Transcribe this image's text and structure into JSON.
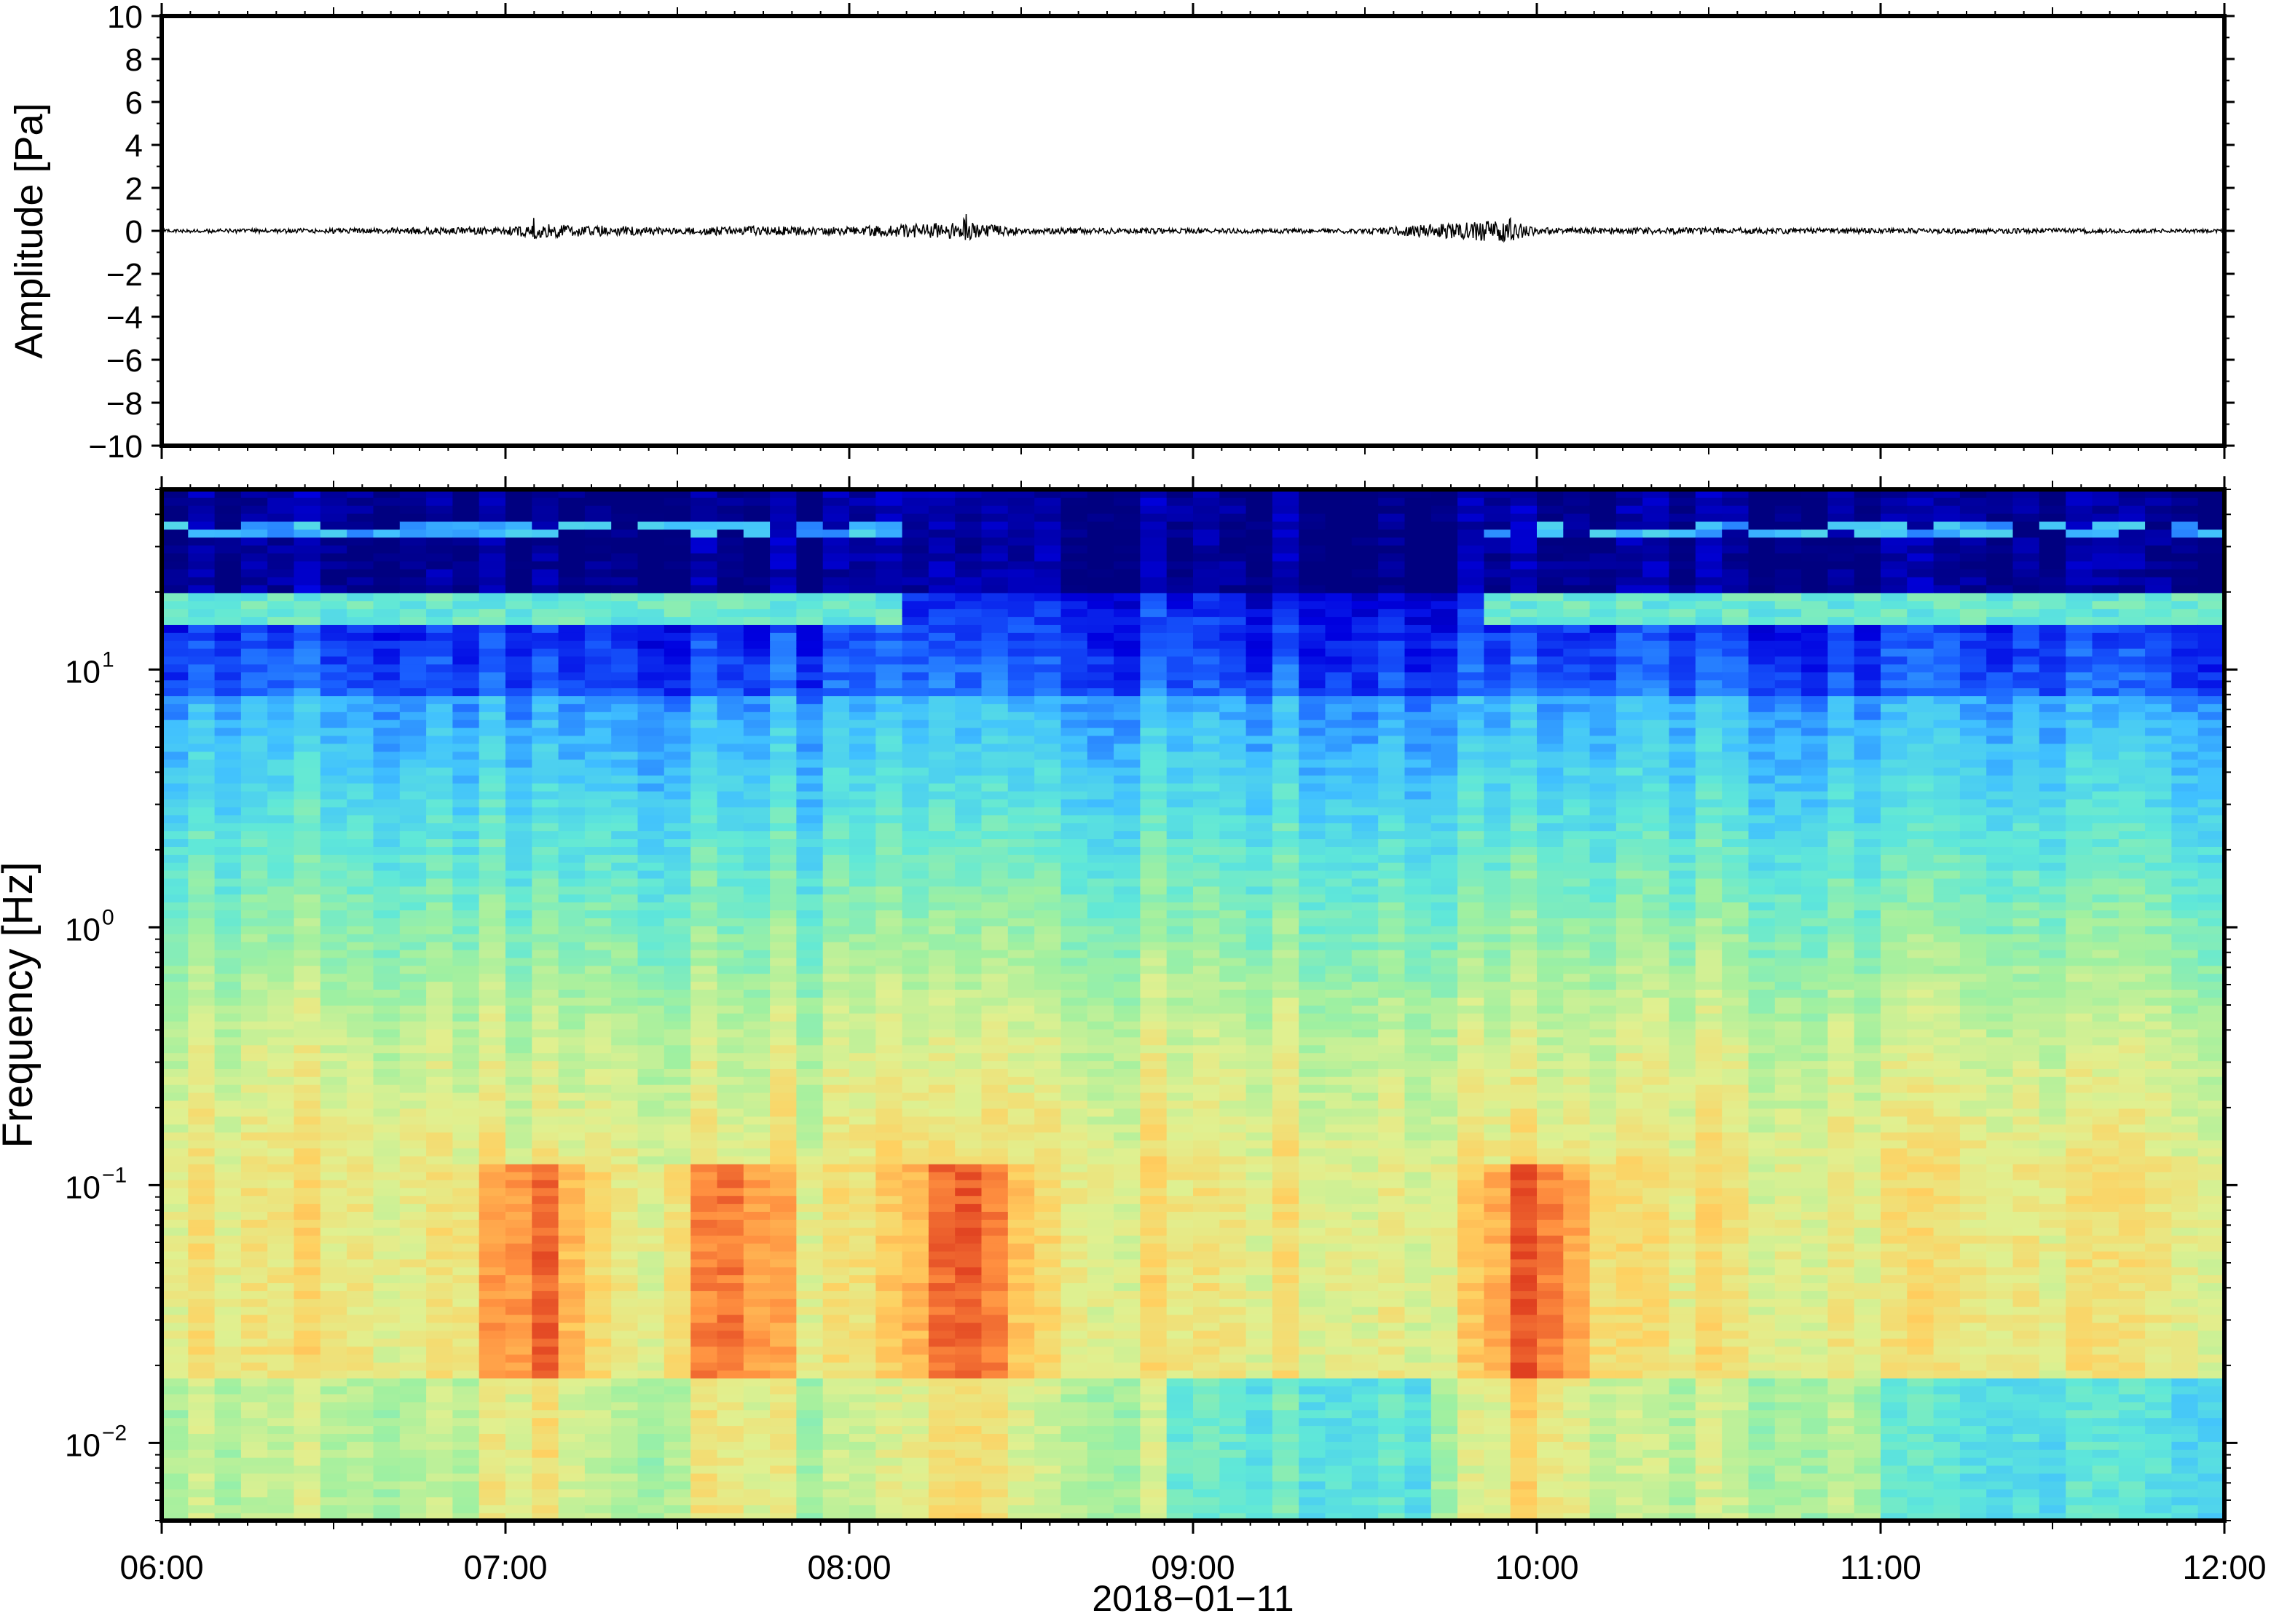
{
  "chart_data": [
    {
      "type": "line",
      "ylabel": "Amplitude [Pa]",
      "ylim": [
        -10,
        10
      ],
      "yticks": [
        "10",
        "8",
        "6",
        "4",
        "2",
        "0",
        "−2",
        "−4",
        "−6",
        "−8",
        "−10"
      ],
      "yticks_values": [
        10,
        8,
        6,
        4,
        2,
        0,
        -2,
        -4,
        -6,
        -8,
        -10
      ],
      "x_range": [
        "06:00",
        "12:00"
      ],
      "series": [
        {
          "x": [
            "06:00",
            "06:30",
            "07:00",
            "07:05",
            "07:30",
            "07:40",
            "08:00",
            "08:20",
            "08:30",
            "09:00",
            "09:30",
            "09:55",
            "10:00",
            "10:30",
            "11:00",
            "11:30",
            "12:00"
          ],
          "values": [
            0,
            0.1,
            0.3,
            0.7,
            0.2,
            0.4,
            0.3,
            1.0,
            0.2,
            0.1,
            0.1,
            1.3,
            0.2,
            0.2,
            0.1,
            0.1,
            0
          ]
        }
      ],
      "grid": false
    },
    {
      "type": "heatmap",
      "ylabel": "Frequency [Hz]",
      "xlabel": "2018−01−11",
      "yscale": "log",
      "ylim": [
        0.005,
        50
      ],
      "yticks": [
        {
          "base": "10",
          "exp": "1",
          "value": 10
        },
        {
          "base": "10",
          "exp": "0",
          "value": 1
        },
        {
          "base": "10",
          "exp": "−1",
          "value": 0.1
        },
        {
          "base": "10",
          "exp": "−2",
          "value": 0.01
        }
      ],
      "xticks": [
        "06:00",
        "07:00",
        "08:00",
        "09:00",
        "10:00",
        "11:00",
        "12:00"
      ],
      "colormap": [
        "#000080",
        "#0000e0",
        "#1a60ff",
        "#40c0ff",
        "#60e8d8",
        "#a0f0a0",
        "#e0f090",
        "#ffd060",
        "#ff9040",
        "#e04020"
      ],
      "intensity_by_band": [
        {
          "freq_range": [
            20,
            50
          ],
          "level": "very low, with bright lines near 17 and 35 Hz"
        },
        {
          "freq_range": [
            3,
            20
          ],
          "level": "low"
        },
        {
          "freq_range": [
            0.3,
            3
          ],
          "level": "medium"
        },
        {
          "freq_range": [
            0.02,
            0.2
          ],
          "level": "high, peaks near 07:05, 07:40, 08:20, 10:00"
        },
        {
          "freq_range": [
            0.005,
            0.02
          ],
          "level": "medium-high, lower after 11:00"
        }
      ],
      "grid": false
    }
  ]
}
